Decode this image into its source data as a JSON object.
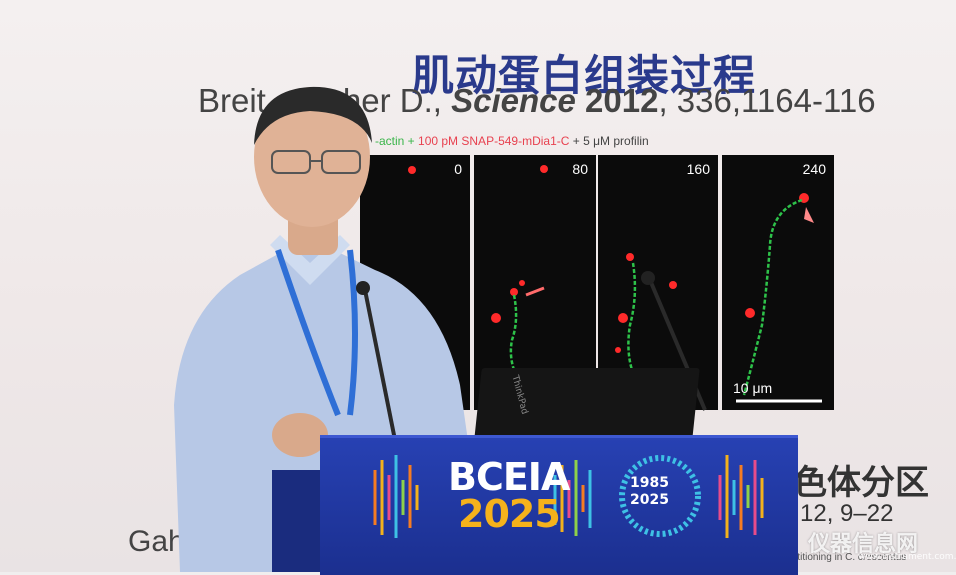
{
  "slide": {
    "title": "肌动蛋白组装过程",
    "citation_author": "Breit",
    "citation_mid": "cher D., ",
    "citation_journal": "Science",
    "citation_year": " 2012",
    "citation_pages": ", 336,1164-116",
    "legend_prefix": "-actin + ",
    "legend_red": "100 pM SNAP-549-mDia1-C",
    "legend_suffix": " + 5 μM profilin",
    "timepoints": [
      "0",
      "80",
      "160",
      "240"
    ],
    "scalebar_label": "10 μm",
    "bottom_right_text": "色体分区",
    "bottom_year": "12, 9–22",
    "bottom_left_text": "Gahl",
    "caption_small": "rtitioning in C. crescentus"
  },
  "podium": {
    "logo_line1": "BCEIA",
    "logo_line2": "2025",
    "badge_top": "1985",
    "badge_bottom": "2025"
  },
  "laptop": {
    "brand": "ThinkPad"
  },
  "watermark": {
    "text": "仪器信息网",
    "url": "www.instrument.com.cn"
  },
  "colors": {
    "title": "#2a3a8c",
    "podium": "#2741b3",
    "logo_accent": "#f5b21b",
    "red_text": "#e8414f",
    "green_text": "#3bb54a"
  }
}
